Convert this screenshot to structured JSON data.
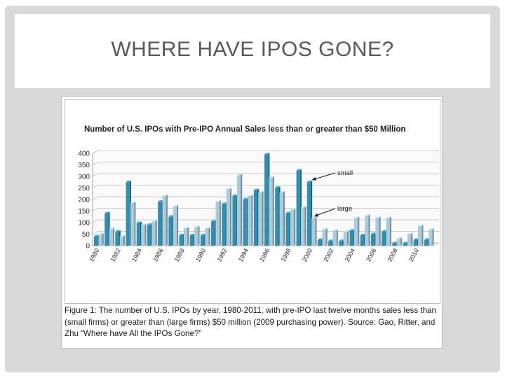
{
  "slide": {
    "title": "WHERE HAVE IPOS GONE?"
  },
  "figure": {
    "caption": "Figure 1: The number of U.S. IPOs by year, 1980-2011, with pre-IPO last twelve months sales less than (small firms) or greater than (large firms) $50 million (2009 purchasing power). Source: Gao, Ritter, and Zhu “Where have All the IPOs Gone?”"
  },
  "colors": {
    "large": "#2e8fae",
    "small": "#a9cbdd"
  },
  "chart_data": {
    "type": "bar",
    "title": "Number of U.S. IPOs with Pre-IPO Annual Sales less than or greater than $50 Million",
    "categories": [
      "1980",
      "1981",
      "1982",
      "1983",
      "1984",
      "1985",
      "1986",
      "1987",
      "1988",
      "1989",
      "1990",
      "1991",
      "1992",
      "1993",
      "1994",
      "1995",
      "1996",
      "1997",
      "1998",
      "1999",
      "2000",
      "2001",
      "2002",
      "2003",
      "2004",
      "2005",
      "2006",
      "2007",
      "2008",
      "2009",
      "2010",
      "2011"
    ],
    "tick_labels": [
      "1980",
      "",
      "1982",
      "",
      "1984",
      "",
      "1986",
      "",
      "1988",
      "",
      "1990",
      "",
      "1992",
      "",
      "1994",
      "",
      "1996",
      "",
      "1998",
      "",
      "2000",
      "",
      "2002",
      "",
      "2004",
      "",
      "2006",
      "",
      "2008",
      "",
      "2010",
      ""
    ],
    "series": [
      {
        "name": "large",
        "values": [
          40,
          140,
          60,
          275,
          98,
          90,
          190,
          125,
          45,
          45,
          45,
          105,
          180,
          215,
          200,
          240,
          395,
          250,
          140,
          325,
          275,
          25,
          20,
          20,
          65,
          45,
          50,
          60,
          10,
          10,
          25,
          25
        ]
      },
      {
        "name": "small",
        "values": [
          48,
          72,
          40,
          185,
          90,
          105,
          215,
          170,
          75,
          80,
          75,
          190,
          245,
          305,
          215,
          230,
          295,
          230,
          155,
          165,
          120,
          70,
          65,
          60,
          120,
          130,
          120,
          120,
          30,
          50,
          85,
          70
        ]
      }
    ],
    "annotations": [
      "small",
      "large"
    ],
    "ylim": [
      0,
      400
    ],
    "yticks": [
      0,
      50,
      100,
      150,
      200,
      250,
      300,
      350,
      400
    ],
    "grid": true
  }
}
